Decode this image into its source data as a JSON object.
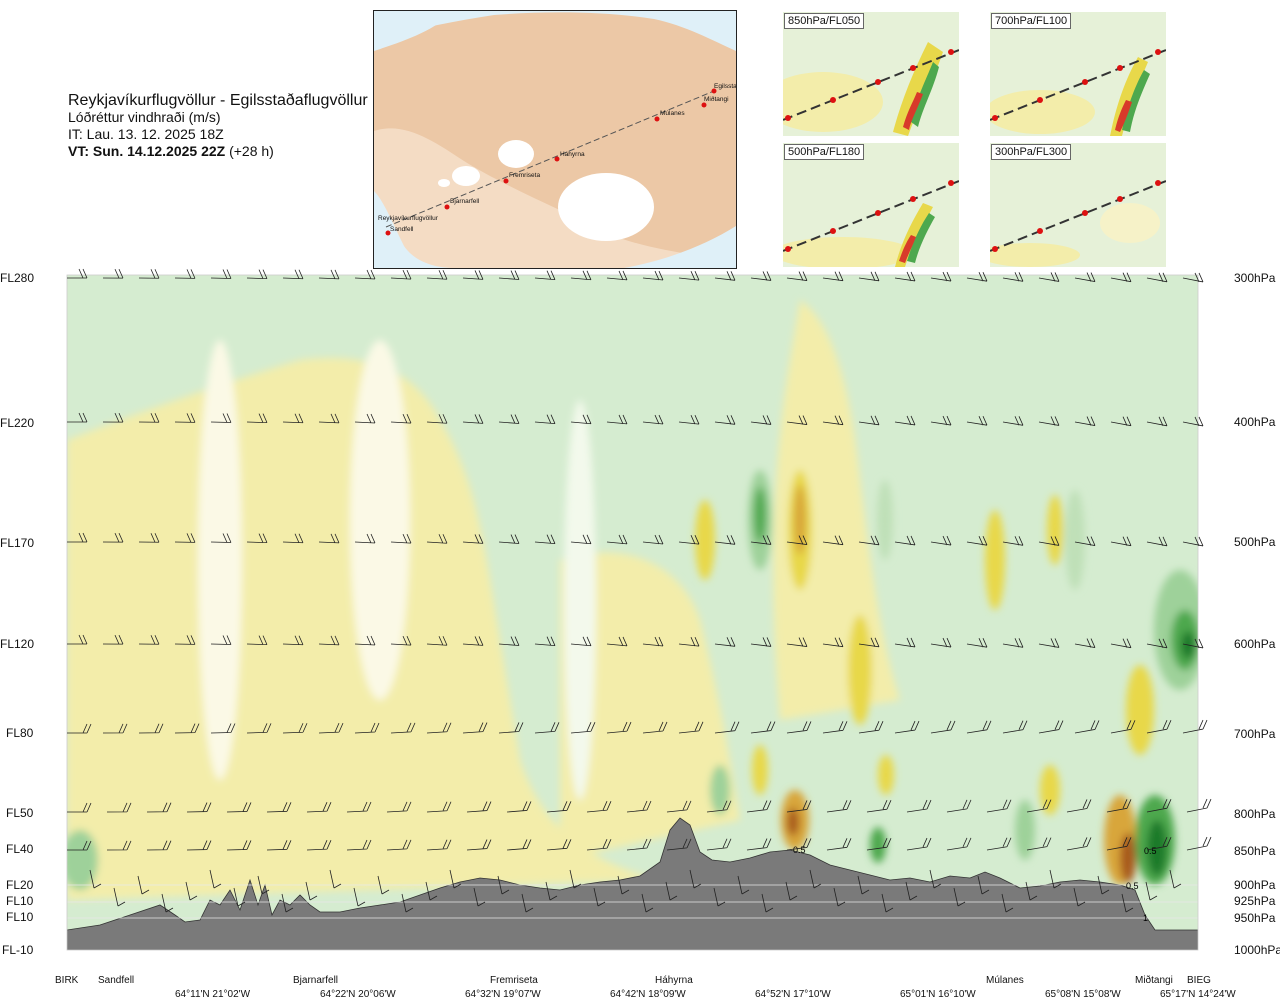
{
  "header": {
    "route": "Reykjavíkurflugvöllur - Egilsstaðaflugvöllur",
    "parameter": "Lóðréttur vindhraði (m/s)",
    "issue_time": "IT: Lau. 13. 12. 2025 18Z",
    "valid_time": "VT: Sun. 14.12.2025 22Z",
    "lead": "(+28 h)"
  },
  "map": {
    "labels": [
      "Reykjavíkurflugvöllur",
      "Sandfell",
      "Bjarnarfell",
      "Fremriseta",
      "Háhyrna",
      "Múlanes",
      "Miðtangi",
      "Egilsstaðir"
    ]
  },
  "thumbnails": [
    {
      "label": "850hPa/FL050"
    },
    {
      "label": "700hPa/FL100"
    },
    {
      "label": "500hPa/FL180"
    },
    {
      "label": "300hPa/FL300"
    }
  ],
  "chart_data": {
    "type": "heatmap",
    "title": "Lóðréttur vindhraði (m/s)",
    "flight_levels": [
      "FL280",
      "FL220",
      "FL170",
      "FL120",
      "FL80",
      "FL50",
      "FL40",
      "FL20",
      "FL10",
      "FL10",
      "FL-10"
    ],
    "pressure_levels": [
      "300hPa",
      "400hPa",
      "500hPa",
      "600hPa",
      "700hPa",
      "800hPa",
      "850hPa",
      "900hPa",
      "925hPa",
      "950hPa",
      "1000hPa"
    ],
    "locations": [
      "BIRK",
      "Sandfell",
      "Bjarnarfell",
      "Fremriseta",
      "Háhyrna",
      "Miðtangi",
      "Múlanes",
      "BIEG"
    ],
    "coordinates": [
      "64°11'N 21°02'W",
      "64°22'N 20°06'W",
      "64°32'N 19°07'W",
      "64°42'N 18°09'W",
      "64°52'N 17°10'W",
      "65°01'N 16°10'W",
      "65°08'N 15°08'W",
      "65°17'N 14°24'W"
    ],
    "contour_labels": [
      "0.5",
      "0.5",
      "0.5",
      "1"
    ],
    "colors": {
      "updraft_light": "#f3edaa",
      "updraft_mid": "#e8d84a",
      "updraft_strong": "#d8a63a",
      "updraft_max": "#a85a1e",
      "downdraft_light": "#d5ecd0",
      "downdraft_mid": "#9ed19a",
      "downdraft_strong": "#4ea84e",
      "downdraft_max": "#1e7a2a",
      "terrain": "#7a7a7a"
    }
  }
}
